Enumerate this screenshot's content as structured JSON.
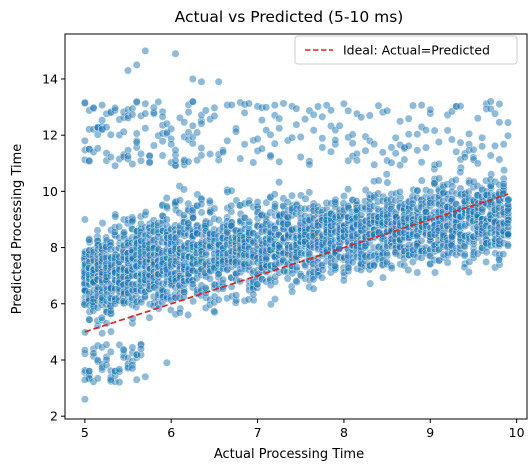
{
  "chart_data": {
    "type": "scatter",
    "title": "Actual vs Predicted (5-10 ms)",
    "xlabel": "Actual Processing Time",
    "ylabel": "Predicted Processing Time",
    "xlim": [
      4.77,
      10.12
    ],
    "ylim": [
      1.9,
      15.6
    ],
    "xticks": [
      5,
      6,
      7,
      8,
      9,
      10
    ],
    "yticks": [
      2,
      4,
      6,
      8,
      10,
      12,
      14
    ],
    "grid": false,
    "legend": {
      "position": "top-right",
      "entries": [
        "Ideal: Actual=Predicted"
      ]
    },
    "series": [
      {
        "kind": "scatter",
        "color": "#1f77b4",
        "alpha": 0.5,
        "description": "dense cloud of roughly 5,000+ points; actual 5.0-9.9, predicted mostly from ~5 rising to ~11 as actual increases",
        "band_lower_at": {
          "x": [
            5.0,
            6.0,
            7.0,
            8.0,
            9.0,
            9.9
          ],
          "y": [
            4.6,
            5.0,
            5.7,
            6.3,
            6.8,
            7.0
          ]
        },
        "band_upper_at": {
          "x": [
            5.0,
            6.0,
            7.0,
            8.0,
            9.0,
            9.9
          ],
          "y": [
            9.0,
            10.4,
            10.4,
            10.6,
            10.9,
            11.2
          ]
        },
        "outliers": [
          {
            "x": 5.0,
            "y": 2.6
          },
          {
            "x": 5.0,
            "y": 3.3
          },
          {
            "x": 5.05,
            "y": 3.6
          },
          {
            "x": 5.3,
            "y": 3.3
          },
          {
            "x": 5.55,
            "y": 3.7
          },
          {
            "x": 5.7,
            "y": 3.4
          },
          {
            "x": 5.95,
            "y": 3.9
          },
          {
            "x": 5.7,
            "y": 15.0
          },
          {
            "x": 6.05,
            "y": 14.9
          },
          {
            "x": 5.6,
            "y": 14.5
          },
          {
            "x": 6.25,
            "y": 14.0
          },
          {
            "x": 5.5,
            "y": 14.3
          },
          {
            "x": 6.35,
            "y": 13.9
          },
          {
            "x": 6.55,
            "y": 13.9
          },
          {
            "x": 5.0,
            "y": 11.8
          },
          {
            "x": 5.0,
            "y": 9.0
          }
        ]
      },
      {
        "kind": "line",
        "name": "Ideal: Actual=Predicted",
        "color": "#d62728",
        "dash": "dashed",
        "x": [
          5.0,
          9.9
        ],
        "y": [
          5.0,
          9.9
        ]
      }
    ]
  }
}
